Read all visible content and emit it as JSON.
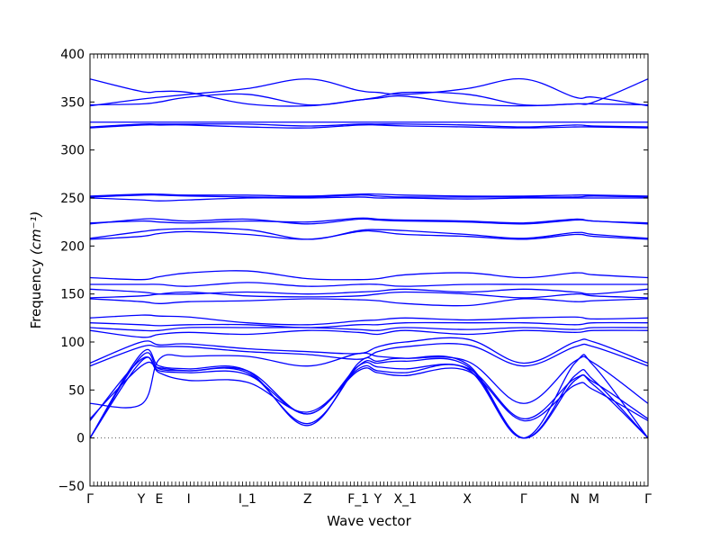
{
  "chart_data": {
    "type": "line",
    "title": "",
    "xlabel": "Wave vector",
    "ylabel": "Frequency",
    "ylabel_unit": "(cm⁻¹)",
    "ylim": [
      -50,
      400
    ],
    "yticks": [
      -50,
      0,
      50,
      100,
      150,
      200,
      250,
      300,
      350,
      400
    ],
    "xlim": [
      0,
      1
    ],
    "x_labels": [
      {
        "x": 0.0,
        "text": "Γ"
      },
      {
        "x": 0.092,
        "text": "Y"
      },
      {
        "x": 0.124,
        "text": "E"
      },
      {
        "x": 0.177,
        "text": "I"
      },
      {
        "x": 0.282,
        "text": "I_1"
      },
      {
        "x": 0.39,
        "text": "Z"
      },
      {
        "x": 0.481,
        "text": "F_1"
      },
      {
        "x": 0.516,
        "text": "Y"
      },
      {
        "x": 0.565,
        "text": "X_1"
      },
      {
        "x": 0.676,
        "text": "X"
      },
      {
        "x": 0.777,
        "text": "Γ"
      },
      {
        "x": 0.869,
        "text": "N"
      },
      {
        "x": 0.903,
        "text": "M"
      },
      {
        "x": 1.0,
        "text": "Γ"
      }
    ],
    "line_color": "#0000ff",
    "zero_line": true,
    "grid": false,
    "series": [
      {
        "x": [
          0,
          0.092,
          0.124,
          0.177,
          0.282,
          0.39,
          0.481,
          0.516,
          0.565,
          0.676,
          0.777,
          0.869,
          0.903,
          1
        ],
        "y": [
          0,
          85,
          72,
          70,
          68,
          15,
          75,
          78,
          80,
          75,
          0,
          60,
          55,
          0
        ]
      },
      {
        "x": [
          0,
          0.092,
          0.124,
          0.177,
          0.282,
          0.39,
          0.481,
          0.516,
          0.565,
          0.676,
          0.777,
          0.869,
          0.903,
          1
        ],
        "y": [
          0,
          88,
          75,
          72,
          70,
          13,
          78,
          80,
          83,
          77,
          0,
          65,
          60,
          0
        ]
      },
      {
        "x": [
          0,
          0.092,
          0.124,
          0.177,
          0.282,
          0.39,
          0.481,
          0.516,
          0.565,
          0.676,
          0.777,
          0.869,
          0.903,
          1
        ],
        "y": [
          0,
          80,
          70,
          68,
          66,
          25,
          72,
          70,
          68,
          72,
          0,
          78,
          75,
          0
        ]
      },
      {
        "x": [
          0,
          0.092,
          0.124,
          0.177,
          0.282,
          0.39,
          0.481,
          0.516,
          0.565,
          0.676,
          0.777,
          0.869,
          0.903,
          1
        ],
        "y": [
          18,
          82,
          68,
          60,
          58,
          27,
          70,
          68,
          65,
          70,
          18,
          55,
          50,
          18
        ]
      },
      {
        "x": [
          0,
          0.092,
          0.124,
          0.177,
          0.282,
          0.39,
          0.481,
          0.516,
          0.565,
          0.676,
          0.777,
          0.869,
          0.903,
          1
        ],
        "y": [
          20,
          75,
          73,
          70,
          70,
          25,
          75,
          74,
          72,
          73,
          20,
          62,
          58,
          20
        ]
      },
      {
        "x": [
          0,
          0.092,
          0.124,
          0.177,
          0.282,
          0.39,
          0.481,
          0.516,
          0.565,
          0.676,
          0.777,
          0.869,
          0.903,
          1
        ],
        "y": [
          36,
          35,
          82,
          85,
          85,
          75,
          88,
          85,
          83,
          80,
          36,
          80,
          78,
          36
        ]
      },
      {
        "x": [
          0,
          0.092,
          0.124,
          0.177,
          0.282,
          0.39,
          0.481,
          0.516,
          0.565,
          0.676,
          0.777,
          0.869,
          0.903,
          1
        ],
        "y": [
          75,
          95,
          95,
          95,
          90,
          87,
          82,
          90,
          95,
          97,
          75,
          95,
          95,
          75
        ]
      },
      {
        "x": [
          0,
          0.092,
          0.124,
          0.177,
          0.282,
          0.39,
          0.481,
          0.516,
          0.565,
          0.676,
          0.777,
          0.869,
          0.903,
          1
        ],
        "y": [
          78,
          100,
          97,
          98,
          93,
          90,
          88,
          95,
          100,
          103,
          78,
          100,
          100,
          78
        ]
      },
      {
        "x": [
          0,
          0.092,
          0.124,
          0.177,
          0.282,
          0.39,
          0.481,
          0.516,
          0.565,
          0.676,
          0.777,
          0.869,
          0.903,
          1
        ],
        "y": [
          112,
          105,
          108,
          110,
          108,
          112,
          110,
          108,
          112,
          108,
          112,
          110,
          112,
          112
        ]
      },
      {
        "x": [
          0,
          0.092,
          0.124,
          0.177,
          0.282,
          0.39,
          0.481,
          0.516,
          0.565,
          0.676,
          0.777,
          0.869,
          0.903,
          1
        ],
        "y": [
          115,
          112,
          112,
          115,
          115,
          115,
          113,
          112,
          115,
          113,
          115,
          113,
          115,
          115
        ]
      },
      {
        "x": [
          0,
          0.092,
          0.124,
          0.177,
          0.282,
          0.39,
          0.481,
          0.516,
          0.565,
          0.676,
          0.777,
          0.869,
          0.903,
          1
        ],
        "y": [
          120,
          118,
          117,
          118,
          118,
          115,
          118,
          118,
          120,
          120,
          120,
          118,
          120,
          120
        ]
      },
      {
        "x": [
          0,
          0.092,
          0.124,
          0.177,
          0.282,
          0.39,
          0.481,
          0.516,
          0.565,
          0.676,
          0.777,
          0.869,
          0.903,
          1
        ],
        "y": [
          125,
          128,
          127,
          126,
          120,
          118,
          122,
          123,
          125,
          123,
          125,
          126,
          124,
          125
        ]
      },
      {
        "x": [
          0,
          0.092,
          0.124,
          0.177,
          0.282,
          0.39,
          0.481,
          0.516,
          0.565,
          0.676,
          0.777,
          0.869,
          0.903,
          1
        ],
        "y": [
          145,
          142,
          140,
          142,
          143,
          145,
          144,
          143,
          140,
          138,
          145,
          142,
          143,
          145
        ]
      },
      {
        "x": [
          0,
          0.092,
          0.124,
          0.177,
          0.282,
          0.39,
          0.481,
          0.516,
          0.565,
          0.676,
          0.777,
          0.869,
          0.903,
          1
        ],
        "y": [
          146,
          148,
          150,
          152,
          148,
          147,
          148,
          150,
          152,
          150,
          146,
          150,
          148,
          146
        ]
      },
      {
        "x": [
          0,
          0.092,
          0.124,
          0.177,
          0.282,
          0.39,
          0.481,
          0.516,
          0.565,
          0.676,
          0.777,
          0.869,
          0.903,
          1
        ],
        "y": [
          155,
          152,
          150,
          150,
          152,
          150,
          152,
          153,
          155,
          152,
          155,
          152,
          150,
          155
        ]
      },
      {
        "x": [
          0,
          0.092,
          0.124,
          0.177,
          0.282,
          0.39,
          0.481,
          0.516,
          0.565,
          0.676,
          0.777,
          0.869,
          0.903,
          1
        ],
        "y": [
          160,
          160,
          160,
          158,
          162,
          158,
          160,
          160,
          158,
          160,
          160,
          160,
          160,
          160
        ]
      },
      {
        "x": [
          0,
          0.092,
          0.124,
          0.177,
          0.282,
          0.39,
          0.481,
          0.516,
          0.565,
          0.676,
          0.777,
          0.869,
          0.903,
          1
        ],
        "y": [
          167,
          165,
          168,
          172,
          174,
          166,
          165,
          166,
          170,
          172,
          167,
          172,
          170,
          167
        ]
      },
      {
        "x": [
          0,
          0.092,
          0.124,
          0.177,
          0.282,
          0.39,
          0.481,
          0.516,
          0.565,
          0.676,
          0.777,
          0.869,
          0.903,
          1
        ],
        "y": [
          207,
          210,
          213,
          215,
          212,
          207,
          215,
          215,
          212,
          210,
          207,
          212,
          210,
          207
        ]
      },
      {
        "x": [
          0,
          0.092,
          0.124,
          0.177,
          0.282,
          0.39,
          0.481,
          0.516,
          0.565,
          0.676,
          0.777,
          0.869,
          0.903,
          1
        ],
        "y": [
          208,
          215,
          217,
          218,
          217,
          207,
          216,
          217,
          216,
          212,
          208,
          214,
          212,
          208
        ]
      },
      {
        "x": [
          0,
          0.092,
          0.124,
          0.177,
          0.282,
          0.39,
          0.481,
          0.516,
          0.565,
          0.676,
          0.777,
          0.869,
          0.903,
          1
        ],
        "y": [
          223,
          228,
          228,
          226,
          228,
          223,
          228,
          227,
          226,
          225,
          223,
          227,
          226,
          223
        ]
      },
      {
        "x": [
          0,
          0.092,
          0.124,
          0.177,
          0.282,
          0.39,
          0.481,
          0.516,
          0.565,
          0.676,
          0.777,
          0.869,
          0.903,
          1
        ],
        "y": [
          224,
          226,
          225,
          224,
          226,
          225,
          229,
          228,
          227,
          226,
          224,
          228,
          226,
          224
        ]
      },
      {
        "x": [
          0,
          0.092,
          0.124,
          0.177,
          0.282,
          0.39,
          0.481,
          0.516,
          0.565,
          0.676,
          0.777,
          0.869,
          0.903,
          1
        ],
        "y": [
          250,
          248,
          247,
          248,
          250,
          250,
          251,
          250,
          250,
          249,
          250,
          250,
          250,
          250
        ]
      },
      {
        "x": [
          0,
          0.092,
          0.124,
          0.177,
          0.282,
          0.39,
          0.481,
          0.516,
          0.565,
          0.676,
          0.777,
          0.869,
          0.903,
          1
        ],
        "y": [
          251,
          253,
          253,
          252,
          251,
          251,
          253,
          252,
          251,
          251,
          251,
          251,
          252,
          251
        ]
      },
      {
        "x": [
          0,
          0.092,
          0.124,
          0.177,
          0.282,
          0.39,
          0.481,
          0.516,
          0.565,
          0.676,
          0.777,
          0.869,
          0.903,
          1
        ],
        "y": [
          252,
          254,
          254,
          253,
          253,
          252,
          254,
          254,
          253,
          252,
          252,
          253,
          253,
          252
        ]
      },
      {
        "x": [
          0,
          0.092,
          0.124,
          0.177,
          0.282,
          0.39,
          0.481,
          0.516,
          0.565,
          0.676,
          0.777,
          0.869,
          0.903,
          1
        ],
        "y": [
          323,
          326,
          326,
          326,
          324,
          323,
          326,
          326,
          325,
          324,
          323,
          324,
          324,
          323
        ]
      },
      {
        "x": [
          0,
          0.092,
          0.124,
          0.177,
          0.282,
          0.39,
          0.481,
          0.516,
          0.565,
          0.676,
          0.777,
          0.869,
          0.903,
          1
        ],
        "y": [
          324,
          327,
          327,
          327,
          327,
          325,
          327,
          327,
          327,
          326,
          324,
          326,
          325,
          324
        ]
      },
      {
        "x": [
          0,
          0.092,
          0.124,
          0.177,
          0.282,
          0.39,
          0.481,
          0.516,
          0.565,
          0.676,
          0.777,
          0.869,
          0.903,
          1
        ],
        "y": [
          329,
          329,
          329,
          329,
          329,
          329,
          329,
          329,
          329,
          329,
          329,
          329,
          329,
          329
        ]
      },
      {
        "x": [
          0,
          0.092,
          0.124,
          0.177,
          0.282,
          0.39,
          0.481,
          0.516,
          0.565,
          0.676,
          0.777,
          0.869,
          0.903,
          1
        ],
        "y": [
          346,
          353,
          355,
          358,
          364,
          374,
          362,
          360,
          358,
          364,
          374,
          355,
          355,
          346
        ]
      },
      {
        "x": [
          0,
          0.092,
          0.124,
          0.177,
          0.282,
          0.39,
          0.481,
          0.516,
          0.565,
          0.676,
          0.777,
          0.869,
          0.903,
          1
        ],
        "y": [
          347,
          348,
          350,
          355,
          358,
          347,
          352,
          355,
          360,
          358,
          347,
          348,
          348,
          347
        ]
      },
      {
        "x": [
          0,
          0.092,
          0.124,
          0.177,
          0.282,
          0.39,
          0.481,
          0.516,
          0.565,
          0.676,
          0.777,
          0.869,
          0.903,
          1
        ],
        "y": [
          374,
          361,
          361,
          360,
          348,
          346,
          352,
          354,
          356,
          348,
          346,
          348,
          350,
          374
        ]
      }
    ]
  }
}
